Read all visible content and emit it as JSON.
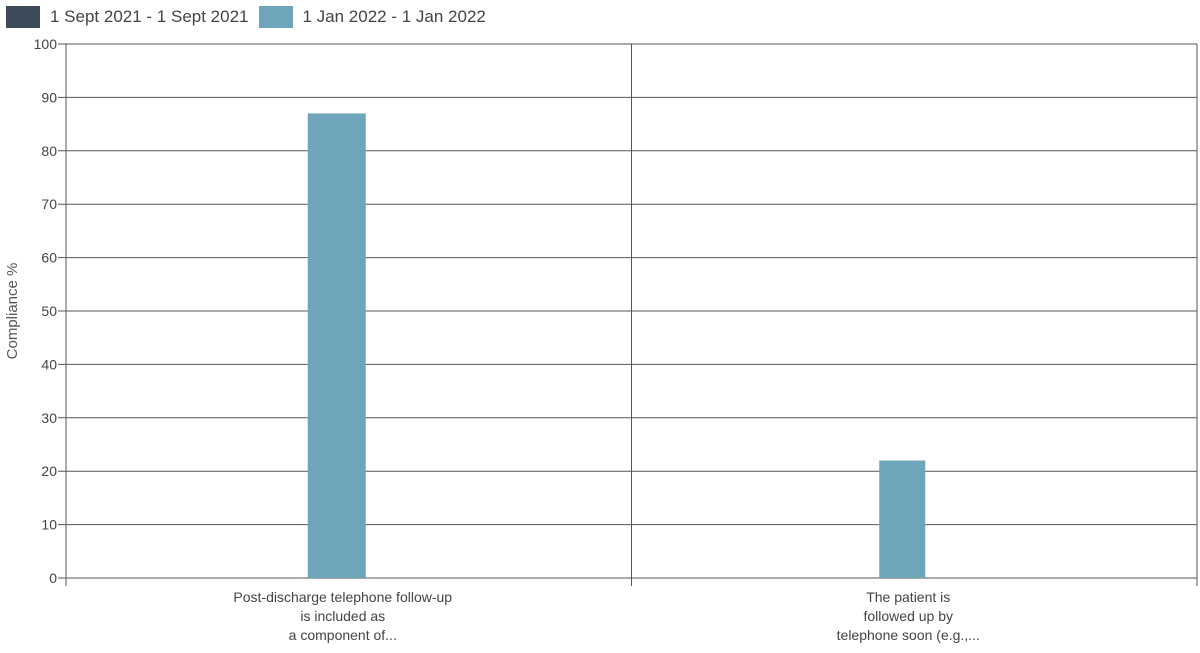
{
  "chart_data": {
    "type": "bar",
    "ylabel": "Compliance %",
    "ylim": [
      0,
      100
    ],
    "yticks": [
      0,
      10,
      20,
      30,
      40,
      50,
      60,
      70,
      80,
      90,
      100
    ],
    "grid": true,
    "legend_position": "top-left",
    "categories": [
      [
        "Post-discharge telephone follow-up",
        "is included as",
        "a component of..."
      ],
      [
        "The patient is",
        "followed up by",
        "telephone soon (e.g.,..."
      ]
    ],
    "series": [
      {
        "name": "1 Sept 2021 - 1 Sept 2021",
        "color": "#3d4a59",
        "values": [
          null,
          null
        ]
      },
      {
        "name": "1 Jan 2022 - 1 Jan 2022",
        "color": "#6ea5ba",
        "values": [
          87,
          22
        ]
      }
    ]
  }
}
